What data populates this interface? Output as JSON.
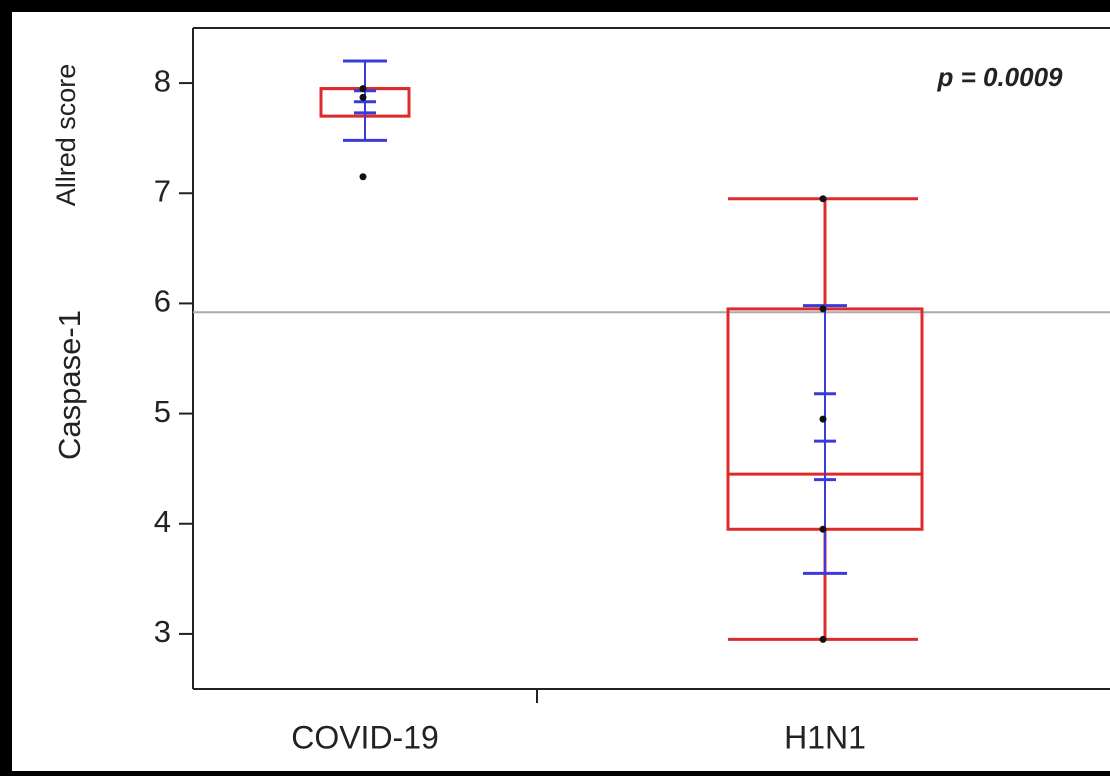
{
  "chart_data": {
    "type": "box",
    "y_label_top": "Allred score",
    "y_label": "Caspase-1",
    "annotation": "p = 0.0009",
    "categories": [
      "COVID-19",
      "H1N1"
    ],
    "q1": [
      7.7,
      3.95
    ],
    "median": [
      7.95,
      4.45
    ],
    "q3": [
      7.95,
      5.95
    ],
    "whisker_low": [
      null,
      2.95
    ],
    "whisker_high": [
      null,
      6.95
    ],
    "points": [
      [
        7.95,
        7.87,
        7.15
      ],
      [
        6.95,
        5.95,
        4.95,
        3.95,
        2.95
      ]
    ],
    "mean": [
      7.83,
      4.75
    ],
    "sd_low": [
      7.48,
      3.55
    ],
    "sd_high": [
      8.2,
      5.98
    ],
    "se_low": [
      7.73,
      4.4
    ],
    "se_high": [
      7.93,
      5.18
    ],
    "grand_mean": 5.92,
    "box_color": "#dd2b2b",
    "stat_color": "#3b3bdc",
    "point_color": "#111111",
    "ylim": [
      2.5,
      8.5
    ],
    "yticks": [
      3,
      4,
      5,
      6,
      7,
      8
    ]
  }
}
